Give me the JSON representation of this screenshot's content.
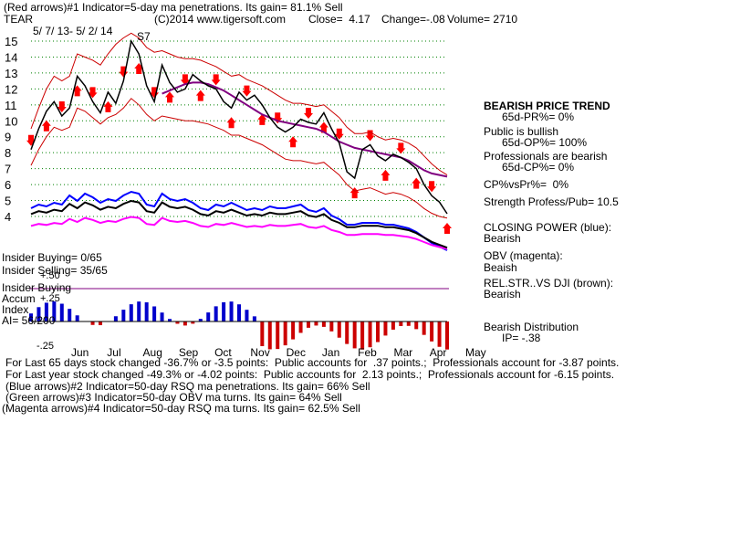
{
  "header": {
    "indicator1": "(Red arrows)#1 Indicator=5-day ma penetrations. Its gain= 81.1% Sell",
    "ticker": "TEAR",
    "copyright": "(C)2014 www.tigersoft.com",
    "close": "Close=  4.17",
    "change": "Change=-.08",
    "volume": "Volume= 2710",
    "date_range": "5/ 7/ 13- 5/ 2/ 14",
    "signal": "S7"
  },
  "right_panel": {
    "trend_title": "BEARISH PRICE TREND",
    "pr": "65d-PR%= 0%",
    "public": "Public is bullish",
    "op": "65d-OP%= 100%",
    "pros": "Professionals are bearish",
    "cp": "65d-CP%= 0%",
    "cpvspr": "CP%vsPr%=  0%",
    "strength": "Strength Profess/Pub= 10.5",
    "closing_power": "CLOSING POWER (blue):",
    "closing_power_val": "Bearish",
    "obv": "OBV (magenta):",
    "obv_val": "Beaish",
    "relstr": "REL.STR..VS DJI (brown):",
    "relstr_val": "Bearish",
    "distribution": "Bearish Distribution",
    "ip": "IP= -.38"
  },
  "left_labels": {
    "insider_buying": "Insider Buying= 0/65",
    "insider_selling": "Insider Selling= 35/65",
    "insider_buying2": "Insider Buying",
    "accum": "Accum",
    "index": "Index",
    "ai": "AI= 56/200",
    "plus50": "+.50",
    "plus25": "+.25",
    "minus25": "-.25"
  },
  "footer": {
    "line1": "For Last 65 days stock changed -36.7% or -3.5 points:  Public accounts for  .37 points.;  Professionals account for -3.87 points.",
    "line2": "For Last year stock changed -49.3% or -4.02 points:  Public accounts for  2.13 points.;  Professionals account for -6.15 points.",
    "line3": "(Blue arrows)#2 Indicator=50-day RSQ ma penetrations. Its gain= 66% Sell",
    "line4": "(Green arrows)#3 Indicator=50-day OBV ma turns. Its gain= 64% Sell",
    "line5": "(Magenta arrows)#4 Indicator=50-day RSQ ma turns. Its gain= 62.5% Sell"
  },
  "colors": {
    "price": "#000000",
    "band": "#cc0000",
    "ma": "#800080",
    "closing_power": "#0000ff",
    "obv": "#ff00ff",
    "relstr": "#000000",
    "accum_pos": "#0000cc",
    "accum_neg": "#cc0000",
    "grid": "#008000",
    "arrow": "#ff0000"
  },
  "chart_data": {
    "type": "line",
    "x_ticks": [
      "Jun",
      "Jul",
      "Aug",
      "Sep",
      "Oct",
      "Nov",
      "Dec",
      "Jan",
      "Feb",
      "Mar",
      "Apr",
      "May"
    ],
    "y_ticks": [
      15,
      14,
      13,
      12,
      11,
      10,
      9,
      8,
      7,
      6,
      5,
      4
    ],
    "ylim": [
      4,
      15
    ],
    "price": [
      8.2,
      9.5,
      10.6,
      11.2,
      10.3,
      10.8,
      12.8,
      12.2,
      11.2,
      10.5,
      11.8,
      11.1,
      12.5,
      15.0,
      14.2,
      12.2,
      11.2,
      13.5,
      12.4,
      11.8,
      12.0,
      12.9,
      12.5,
      12.2,
      12.0,
      11.2,
      10.8,
      11.8,
      11.3,
      11.6,
      11.0,
      10.2,
      9.6,
      9.3,
      9.6,
      10.1,
      9.9,
      9.8,
      10.5,
      9.5,
      8.6,
      6.8,
      6.4,
      8.2,
      8.5,
      7.8,
      7.5,
      7.9,
      7.7,
      7.4,
      7.0,
      6.0,
      5.3,
      4.9,
      4.17
    ],
    "ma": [
      null,
      null,
      null,
      null,
      null,
      null,
      null,
      null,
      null,
      null,
      null,
      null,
      null,
      null,
      null,
      null,
      null,
      11.7,
      11.9,
      12.1,
      12.3,
      12.4,
      12.4,
      12.3,
      12.1,
      11.9,
      11.6,
      11.3,
      11.0,
      10.7,
      10.4,
      10.2,
      10.0,
      9.9,
      9.8,
      9.7,
      9.6,
      9.5,
      9.3,
      9.0,
      8.7,
      8.5,
      8.3,
      8.2,
      8.1,
      8.0,
      7.9,
      7.8,
      7.7,
      7.5,
      7.2,
      6.9,
      6.7,
      6.6,
      6.5
    ],
    "upper_band": [
      9.5,
      10.8,
      12.0,
      12.8,
      12.5,
      12.8,
      14.2,
      14.0,
      13.8,
      13.5,
      14.2,
      14.8,
      15.2,
      15.5,
      15.2,
      14.6,
      14.3,
      14.4,
      14.2,
      14.0,
      13.9,
      13.9,
      13.8,
      13.6,
      13.4,
      13.1,
      12.8,
      12.9,
      12.6,
      12.4,
      12.2,
      11.9,
      11.6,
      11.3,
      11.1,
      11.1,
      11.0,
      10.9,
      11.0,
      10.6,
      10.2,
      9.6,
      9.2,
      9.2,
      9.3,
      9.0,
      8.8,
      8.9,
      8.8,
      8.6,
      8.3,
      7.8,
      7.3,
      6.9,
      6.6
    ],
    "lower_band": [
      7.2,
      8.2,
      9.0,
      9.6,
      9.4,
      9.6,
      10.8,
      10.6,
      10.2,
      9.8,
      10.2,
      10.4,
      10.8,
      11.4,
      11.0,
      10.4,
      10.0,
      10.3,
      10.2,
      10.1,
      10.0,
      10.0,
      9.9,
      9.8,
      9.6,
      9.4,
      9.1,
      9.1,
      8.9,
      8.7,
      8.5,
      8.2,
      7.9,
      7.6,
      7.5,
      7.5,
      7.4,
      7.3,
      7.4,
      7.0,
      6.6,
      6.0,
      5.6,
      5.7,
      5.8,
      5.6,
      5.4,
      5.5,
      5.4,
      5.2,
      4.9,
      4.5,
      4.2,
      4.0,
      3.9
    ],
    "closing_power": [
      5.1,
      5.3,
      5.2,
      5.4,
      5.3,
      5.8,
      5.5,
      5.9,
      5.7,
      5.4,
      5.6,
      5.5,
      5.8,
      6.0,
      5.9,
      5.3,
      5.2,
      5.9,
      5.6,
      5.5,
      5.6,
      5.4,
      5.1,
      5.0,
      5.3,
      5.2,
      5.4,
      5.2,
      5.0,
      5.1,
      5.0,
      5.2,
      5.1,
      5.1,
      5.2,
      5.3,
      5.0,
      4.9,
      5.1,
      4.7,
      4.5,
      4.2,
      4.2,
      4.3,
      4.3,
      4.3,
      4.2,
      4.2,
      4.1,
      4.0,
      3.8,
      3.5,
      3.2,
      3.0,
      2.8
    ]
  }
}
